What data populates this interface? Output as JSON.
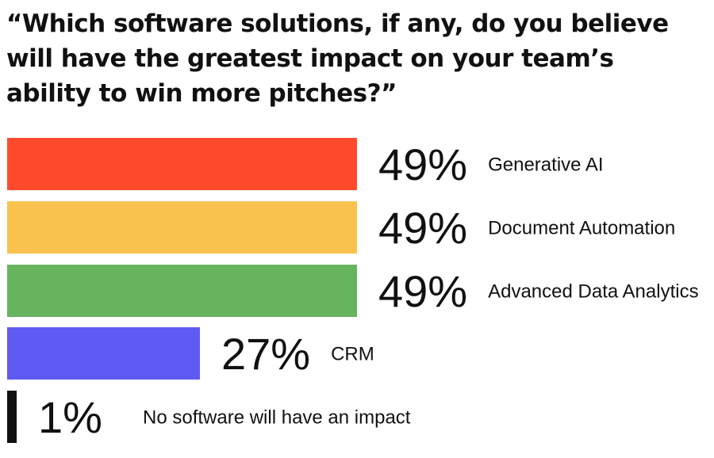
{
  "chart_data": {
    "type": "bar",
    "orientation": "horizontal",
    "title": "“Which software solutions, if any, do you believe will have the greatest impact on your team’s ability to win more pitches?”",
    "categories": [
      "Generative AI",
      "Document Automation",
      "Advanced Data Analytics",
      "CRM",
      "No software will have an impact"
    ],
    "values": [
      49,
      49,
      49,
      27,
      1
    ],
    "value_labels": [
      "49%",
      "49%",
      "49%",
      "27%",
      "1%"
    ],
    "colors": [
      "#FF4B2B",
      "#F9C24F",
      "#67B35E",
      "#5F5BF2",
      "#111111"
    ],
    "unit": "%",
    "xlim": [
      0,
      100
    ],
    "grid": false,
    "legend": "none"
  }
}
